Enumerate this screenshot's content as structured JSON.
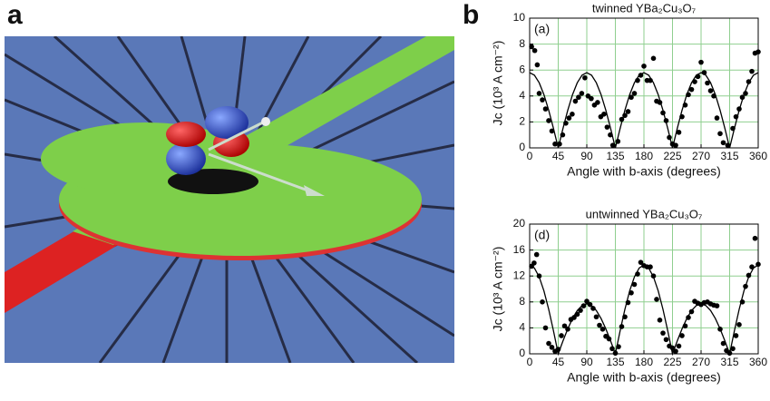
{
  "figure_labels": [
    "a",
    "b"
  ],
  "chart_data": [
    {
      "type": "scatter",
      "title": "twinned YBa₂Cu₃O₇",
      "panel_label": "(a)",
      "xlabel": "Angle with b-axis  (degrees)",
      "ylabel": "Jc  (10³ A cm⁻²)",
      "xlim": [
        0,
        360
      ],
      "xticks": [
        0,
        45,
        90,
        135,
        180,
        225,
        270,
        315,
        360
      ],
      "ylim": [
        0,
        10
      ],
      "yticks": [
        0,
        2,
        4,
        6,
        8,
        10
      ],
      "grid": true,
      "series": [
        {
          "kind": "scatter",
          "color": "#000000",
          "x": [
            3,
            8,
            12,
            15,
            20,
            25,
            30,
            35,
            40,
            47,
            52,
            57,
            62,
            67,
            72,
            77,
            82,
            87,
            92,
            97,
            102,
            107,
            112,
            117,
            122,
            127,
            131,
            139,
            145,
            150,
            155,
            160,
            165,
            170,
            175,
            180,
            185,
            190,
            195,
            200,
            205,
            210,
            215,
            220,
            225,
            230,
            235,
            240,
            245,
            250,
            255,
            260,
            265,
            270,
            275,
            280,
            285,
            290,
            295,
            300,
            305,
            312,
            320,
            325,
            330,
            335,
            340,
            345,
            350,
            355,
            360
          ],
          "values": [
            7.8,
            7.5,
            6.4,
            4.2,
            3.7,
            3.0,
            2.1,
            1.3,
            0.3,
            0.3,
            1.0,
            1.9,
            2.3,
            2.6,
            3.6,
            3.9,
            4.2,
            5.4,
            4.0,
            3.8,
            3.3,
            3.5,
            2.4,
            2.6,
            1.6,
            1.0,
            0.2,
            0.5,
            2.2,
            2.5,
            2.8,
            3.9,
            4.2,
            5.2,
            5.6,
            6.3,
            5.2,
            5.2,
            6.9,
            3.6,
            3.5,
            2.7,
            2.1,
            0.8,
            0.3,
            0.2,
            1.2,
            2.4,
            3.3,
            4.1,
            4.5,
            5.1,
            5.5,
            6.6,
            5.8,
            5.0,
            4.4,
            4.0,
            2.3,
            1.1,
            0.4,
            0.2,
            1.5,
            2.4,
            3.0,
            3.9,
            4.2,
            5.1,
            5.9,
            7.3,
            7.4
          ]
        },
        {
          "kind": "line",
          "color": "#000000",
          "x": [
            0,
            7.5,
            15,
            22.5,
            30,
            37.5,
            45,
            52.5,
            60,
            67.5,
            75,
            82.5,
            90,
            97.5,
            105,
            112.5,
            120,
            127.5,
            135,
            142.5,
            150,
            157.5,
            165,
            172.5,
            180,
            187.5,
            195,
            202.5,
            210,
            217.5,
            225,
            232.5,
            240,
            247.5,
            255,
            262.5,
            270,
            277.5,
            285,
            292.5,
            300,
            307.5,
            315,
            322.5,
            330,
            337.5,
            345,
            352.5,
            360
          ],
          "values": [
            5.8,
            5.6,
            5.02,
            4.1,
            2.9,
            1.5,
            0,
            1.5,
            2.9,
            4.1,
            5.02,
            5.6,
            5.8,
            5.6,
            5.02,
            4.1,
            2.9,
            1.5,
            0,
            1.5,
            2.9,
            4.1,
            5.02,
            5.6,
            5.8,
            5.6,
            5.02,
            4.1,
            2.9,
            1.5,
            0,
            1.5,
            2.9,
            4.1,
            5.02,
            5.6,
            5.8,
            5.6,
            5.02,
            4.1,
            2.9,
            1.5,
            0,
            1.5,
            2.9,
            4.1,
            5.02,
            5.6,
            5.8
          ]
        }
      ]
    },
    {
      "type": "scatter",
      "title": "untwinned YBa₂Cu₃O₇",
      "panel_label": "(d)",
      "xlabel": "Angle with b-axis  (degrees)",
      "ylabel": "Jc  (10³ A cm⁻²)",
      "xlim": [
        0,
        360
      ],
      "xticks": [
        0,
        45,
        90,
        135,
        180,
        225,
        270,
        315,
        360
      ],
      "ylim": [
        0,
        20
      ],
      "yticks": [
        0,
        4,
        8,
        12,
        16,
        20
      ],
      "grid": true,
      "series": [
        {
          "kind": "scatter",
          "color": "#000000",
          "x": [
            3,
            7,
            11,
            15,
            20,
            25,
            30,
            35,
            40,
            45,
            50,
            55,
            60,
            65,
            70,
            75,
            80,
            85,
            90,
            95,
            100,
            105,
            110,
            115,
            120,
            125,
            130,
            135,
            140,
            145,
            150,
            155,
            160,
            165,
            170,
            175,
            180,
            185,
            190,
            195,
            200,
            205,
            210,
            215,
            220,
            225,
            230,
            235,
            240,
            245,
            250,
            255,
            260,
            265,
            270,
            275,
            280,
            285,
            290,
            295,
            300,
            305,
            310,
            315,
            320,
            325,
            330,
            335,
            340,
            345,
            350,
            355,
            360
          ],
          "values": [
            13.5,
            14,
            15.3,
            12,
            8,
            4,
            1.6,
            1.0,
            0.4,
            0.7,
            2.8,
            4.3,
            3.8,
            5.3,
            5.6,
            6.1,
            6.7,
            7.4,
            8.1,
            7.6,
            7.0,
            5.7,
            4.4,
            3.8,
            2.7,
            2.3,
            0.8,
            0.1,
            1.1,
            4.2,
            5.7,
            7.9,
            9.4,
            10.7,
            12.3,
            14.1,
            13.6,
            13.4,
            13.4,
            12.0,
            8.4,
            5.2,
            3.2,
            2.2,
            1.2,
            0.9,
            0.4,
            1.2,
            2.8,
            4.3,
            5.6,
            6.5,
            8.1,
            7.8,
            7.6,
            7.9,
            8.0,
            7.7,
            7.5,
            7.4,
            3.8,
            1.6,
            0.5,
            0.1,
            0.8,
            2.8,
            4.5,
            8.0,
            10.4,
            12.1,
            13.4,
            17.8,
            13.8
          ]
        },
        {
          "kind": "line",
          "color": "#000000",
          "x": [
            0,
            7.5,
            15,
            22.5,
            30,
            37.5,
            45,
            52.5,
            60,
            67.5,
            75,
            82.5,
            90,
            97.5,
            105,
            112.5,
            120,
            127.5,
            135,
            142.5,
            150,
            157.5,
            165,
            172.5,
            180,
            187.5,
            195,
            202.5,
            210,
            217.5,
            225,
            232.5,
            240,
            247.5,
            255,
            262.5,
            270,
            277.5,
            285,
            292.5,
            300,
            307.5,
            315,
            322.5,
            330,
            337.5,
            345,
            352.5,
            360
          ],
          "values": [
            13.7,
            13.23,
            11.86,
            9.69,
            6.85,
            3.55,
            0,
            1.99,
            3.85,
            5.44,
            6.67,
            7.44,
            7.7,
            7.44,
            6.67,
            5.44,
            3.85,
            1.99,
            0,
            3.55,
            6.85,
            9.69,
            11.86,
            13.23,
            13.7,
            13.23,
            11.86,
            9.69,
            6.85,
            3.55,
            0,
            1.99,
            3.85,
            5.44,
            6.67,
            7.44,
            7.7,
            7.44,
            6.67,
            5.44,
            3.85,
            1.99,
            0,
            3.55,
            6.85,
            9.69,
            11.86,
            13.23,
            13.7
          ]
        }
      ]
    }
  ]
}
